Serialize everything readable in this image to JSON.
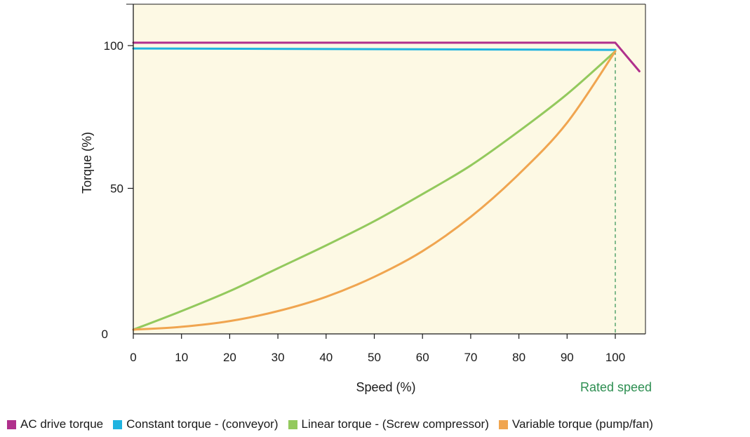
{
  "colors": {
    "plot_background": "#fdf9e4",
    "axis": "#1a1a1a",
    "ac_drive": "#b0308c",
    "constant": "#1fb3e0",
    "linear": "#93c95d",
    "variable": "#f0a550",
    "rated_marker": "#2e8f52"
  },
  "chart_data": {
    "type": "line",
    "title": "",
    "xlabel": "Speed (%)",
    "ylabel": "Torque (%)",
    "xlim": [
      0,
      105
    ],
    "ylim": [
      0,
      115
    ],
    "x_ticks": [
      0,
      10,
      20,
      30,
      40,
      50,
      60,
      70,
      80,
      90,
      100
    ],
    "y_ticks": [
      0,
      50,
      100
    ],
    "grid": false,
    "rated_speed": {
      "x": 100,
      "label": "Rated speed"
    },
    "series": [
      {
        "name": "AC drive torque",
        "color_key": "ac_drive",
        "x": [
          0,
          100,
          105
        ],
        "y": [
          101,
          101,
          91
        ]
      },
      {
        "name": "Constant torque - (conveyor)",
        "color_key": "constant",
        "x": [
          0,
          100
        ],
        "y": [
          99,
          98.5
        ]
      },
      {
        "name": "Linear torque - (Screw compressor)",
        "color_key": "linear",
        "x": [
          0,
          10,
          20,
          30,
          40,
          50,
          60,
          70,
          80,
          90,
          100
        ],
        "y": [
          0.5,
          7,
          14,
          22,
          30,
          38.5,
          48,
          58,
          70,
          83,
          98
        ]
      },
      {
        "name": "Variable torque (pump/fan)",
        "color_key": "variable",
        "x": [
          0,
          10,
          20,
          30,
          40,
          50,
          60,
          70,
          80,
          90,
          100
        ],
        "y": [
          0.5,
          1.5,
          3.5,
          7,
          12,
          19,
          28,
          40,
          55,
          73,
          98
        ]
      }
    ]
  },
  "legend": [
    {
      "label": "AC drive torque",
      "color_key": "ac_drive"
    },
    {
      "label": "Constant torque - (conveyor)",
      "color_key": "constant"
    },
    {
      "label": "Linear torque - (Screw compressor)",
      "color_key": "linear"
    },
    {
      "label": "Variable torque (pump/fan)",
      "color_key": "variable"
    }
  ]
}
